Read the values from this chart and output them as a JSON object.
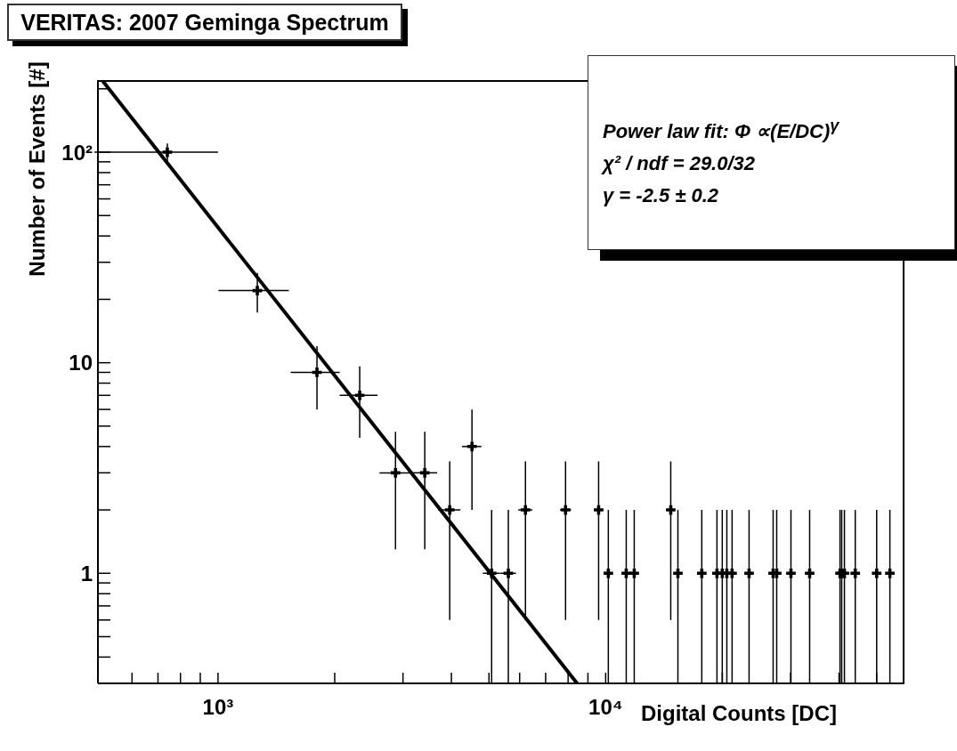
{
  "chart_data": {
    "type": "scatter",
    "title": "VERITAS: 2007 Geminga Spectrum",
    "xlabel": "Digital Counts [DC]",
    "ylabel": "Number of Events [#]",
    "log": "xy",
    "xlim": [
      490,
      59000
    ],
    "ylim": [
      0.3,
      220
    ],
    "xticks": [
      {
        "value": 600,
        "label": null
      },
      {
        "value": 700,
        "label": null
      },
      {
        "value": 800,
        "label": null
      },
      {
        "value": 900,
        "label": null
      },
      {
        "value": 1000,
        "label": "10³"
      },
      {
        "value": 2000,
        "label": null
      },
      {
        "value": 3000,
        "label": null
      },
      {
        "value": 4000,
        "label": null
      },
      {
        "value": 5000,
        "label": null
      },
      {
        "value": 6000,
        "label": null
      },
      {
        "value": 7000,
        "label": null
      },
      {
        "value": 8000,
        "label": null
      },
      {
        "value": 9000,
        "label": null
      },
      {
        "value": 10000,
        "label": "10⁴"
      },
      {
        "value": 20000,
        "label": null
      },
      {
        "value": 30000,
        "label": null
      },
      {
        "value": 40000,
        "label": null
      },
      {
        "value": 50000,
        "label": null
      }
    ],
    "yticks": [
      {
        "value": 0.4,
        "label": null
      },
      {
        "value": 0.5,
        "label": null
      },
      {
        "value": 0.6,
        "label": null
      },
      {
        "value": 0.7,
        "label": null
      },
      {
        "value": 0.8,
        "label": null
      },
      {
        "value": 0.9,
        "label": null
      },
      1,
      {
        "value": 2,
        "label": null
      },
      {
        "value": 3,
        "label": null
      },
      {
        "value": 4,
        "label": null
      },
      {
        "value": 5,
        "label": null
      },
      {
        "value": 6,
        "label": null
      },
      {
        "value": 7,
        "label": null
      },
      {
        "value": 8,
        "label": null
      },
      {
        "value": 9,
        "label": null
      },
      10,
      {
        "value": 20,
        "label": null
      },
      {
        "value": 30,
        "label": null
      },
      {
        "value": 40,
        "label": null
      },
      {
        "value": 50,
        "label": null
      },
      {
        "value": 60,
        "label": null
      },
      {
        "value": 70,
        "label": null
      },
      {
        "value": 80,
        "label": null
      },
      {
        "value": 90,
        "label": null
      },
      {
        "value": 100,
        "label": "10²"
      },
      {
        "value": 200,
        "label": null
      }
    ],
    "grid": false,
    "legend": false,
    "annotations": [
      "Power law fit: Φ ∝(E/DC)$^{γ}$",
      "χ² / ndf =  29.0/32",
      "γ  = -2.5 ± 0.2"
    ],
    "series": [
      {
        "color": "#000000",
        "marker": "cross",
        "x": [
          740,
          1263,
          1800,
          2320,
          2870,
          3415,
          3960,
          4520,
          5080,
          5610,
          6210,
          7880,
          9590,
          10160,
          11300,
          11850,
          14720,
          15360,
          17700,
          19370,
          19990,
          20540,
          21190,
          23440,
          27040,
          27620,
          30060,
          33590,
          40230,
          40640,
          41300,
          44040,
          50020,
          54100
        ],
        "values": [
          100,
          22,
          9,
          7,
          3,
          3,
          2,
          4,
          1,
          1,
          2,
          2,
          2,
          1,
          1,
          1,
          2,
          1,
          1,
          1,
          1,
          1,
          1,
          1,
          1,
          1,
          1,
          1,
          1,
          1,
          1,
          1,
          1,
          1
        ],
        "errors": [
          10,
          4.7,
          3,
          2.6,
          1.7,
          1.7,
          1.4,
          2,
          [
            0.3,
            2
          ],
          [
            0.3,
            2
          ],
          1.4,
          1.4,
          1.4,
          [
            0.3,
            2
          ],
          [
            0.3,
            2
          ],
          [
            0.3,
            2
          ],
          1.4,
          [
            0.3,
            2
          ],
          [
            0.3,
            2
          ],
          [
            0.3,
            2
          ],
          [
            0.3,
            2
          ],
          [
            0.3,
            2
          ],
          [
            0.3,
            2
          ],
          [
            0.3,
            2
          ],
          [
            0.3,
            2
          ],
          [
            0.3,
            2
          ],
          [
            0.3,
            2
          ],
          [
            0.3,
            2
          ],
          [
            0.3,
            2
          ],
          [
            0.3,
            2
          ],
          [
            0.3,
            2
          ],
          [
            0.3,
            2
          ],
          [
            0.3,
            2
          ],
          [
            0.3,
            2
          ]
        ],
        "xerrors": [
          260,
          260,
          260,
          260,
          260,
          260,
          260,
          260,
          260,
          260,
          260,
          260,
          260,
          260,
          260,
          260,
          260,
          260,
          260,
          260,
          260,
          260,
          260,
          260,
          260,
          260,
          260,
          260,
          260,
          260,
          260,
          260,
          260,
          260
        ]
      },
      {
        "type": "line",
        "color": "#000000",
        "x": [
          502,
          8440
        ],
        "values": [
          220,
          0.3
        ]
      }
    ]
  }
}
